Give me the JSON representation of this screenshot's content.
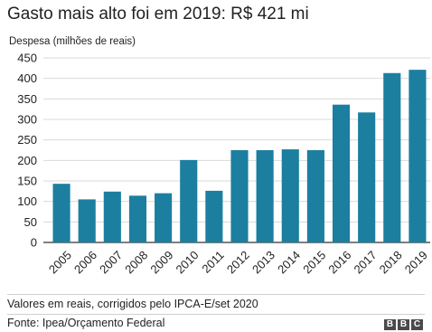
{
  "title": "Gasto mais alto foi em 2019: R$ 421 mi",
  "footer": {
    "note": "Valores em reais, corrigidos pelo IPCA-E/set 2020",
    "source": "Fonte: Ipea/Orçamento Federal",
    "logo_letters": [
      "B",
      "B",
      "C"
    ]
  },
  "colors": {
    "bar": "#1c7fa0",
    "grid": "#d9d9d9",
    "axis": "#333333"
  },
  "chart_data": {
    "type": "bar",
    "title": "Gasto mais alto foi em 2019: R$ 421 mi",
    "ylabel": "Despesa (milhões de reais)",
    "xlabel": "",
    "categories": [
      "2005",
      "2006",
      "2007",
      "2008",
      "2009",
      "2010",
      "2011",
      "2012",
      "2013",
      "2014",
      "2015",
      "2016",
      "2017",
      "2018",
      "2019"
    ],
    "values": [
      143,
      105,
      124,
      114,
      120,
      201,
      126,
      225,
      225,
      227,
      225,
      336,
      317,
      413,
      421
    ],
    "ylim": [
      0,
      450
    ],
    "yticks": [
      0,
      50,
      100,
      150,
      200,
      250,
      300,
      350,
      400,
      450
    ],
    "grid": true,
    "legend": "none"
  }
}
